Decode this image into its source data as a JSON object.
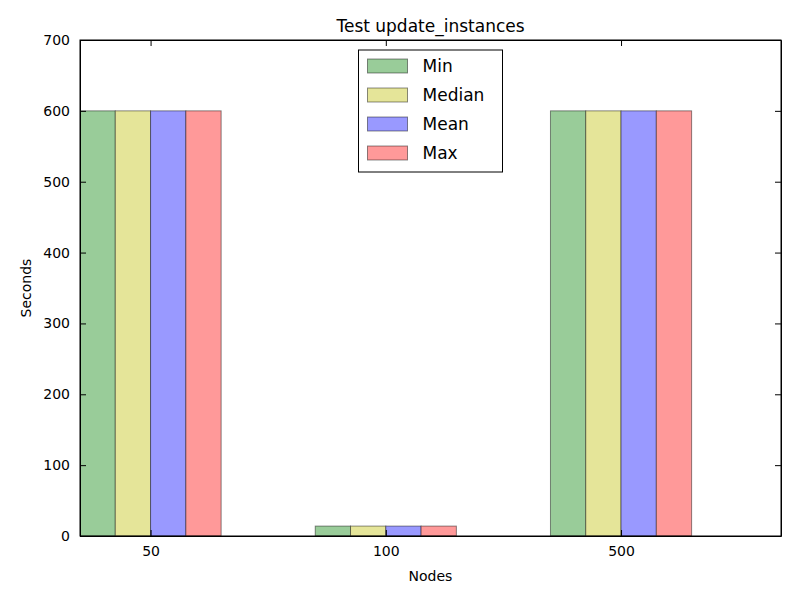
{
  "chart_data": {
    "type": "bar",
    "title": "Test update_instances",
    "x_label": "Nodes",
    "y_label": "Seconds",
    "categories": [
      "50",
      "100",
      "500"
    ],
    "series": [
      {
        "name": "Min",
        "color": "#99cc99",
        "values": [
          600,
          14,
          600
        ]
      },
      {
        "name": "Median",
        "color": "#e5e599",
        "values": [
          600,
          14,
          600
        ]
      },
      {
        "name": "Mean",
        "color": "#9999ff",
        "values": [
          600,
          14,
          600
        ]
      },
      {
        "name": "Max",
        "color": "#ff9999",
        "values": [
          600,
          14,
          600
        ]
      }
    ],
    "ylim": [
      0,
      700
    ],
    "yticks": [
      0,
      100,
      200,
      300,
      400,
      500,
      600,
      700
    ],
    "legend": "upper center"
  }
}
